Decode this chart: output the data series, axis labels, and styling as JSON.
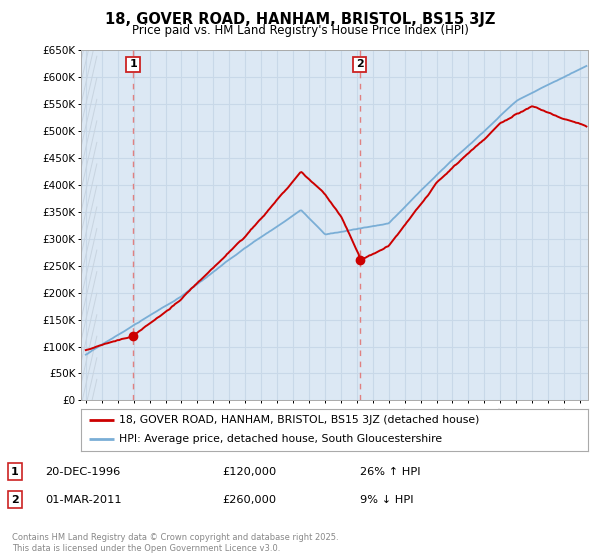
{
  "title": "18, GOVER ROAD, HANHAM, BRISTOL, BS15 3JZ",
  "subtitle": "Price paid vs. HM Land Registry's House Price Index (HPI)",
  "ylabel_ticks": [
    "£0",
    "£50K",
    "£100K",
    "£150K",
    "£200K",
    "£250K",
    "£300K",
    "£350K",
    "£400K",
    "£450K",
    "£500K",
    "£550K",
    "£600K",
    "£650K"
  ],
  "ytick_values": [
    0,
    50000,
    100000,
    150000,
    200000,
    250000,
    300000,
    350000,
    400000,
    450000,
    500000,
    550000,
    600000,
    650000
  ],
  "xlim_start": 1993.7,
  "xlim_end": 2025.5,
  "ylim_min": 0,
  "ylim_max": 650000,
  "sale1_date": 1996.97,
  "sale1_price": 120000,
  "sale2_date": 2011.17,
  "sale2_price": 260000,
  "line1_color": "#cc0000",
  "line2_color": "#7aaed6",
  "grid_color": "#c8d8e8",
  "vline_color": "#e08080",
  "bg_color": "#dce8f4",
  "hatch_color": "#c8d4e0",
  "legend_line1": "18, GOVER ROAD, HANHAM, BRISTOL, BS15 3JZ (detached house)",
  "legend_line2": "HPI: Average price, detached house, South Gloucestershire",
  "footer": "Contains HM Land Registry data © Crown copyright and database right 2025.\nThis data is licensed under the Open Government Licence v3.0.",
  "annotation1_date": "20-DEC-1996",
  "annotation1_price": "£120,000",
  "annotation1_hpi": "26% ↑ HPI",
  "annotation2_date": "01-MAR-2011",
  "annotation2_price": "£260,000",
  "annotation2_hpi": "9% ↓ HPI"
}
